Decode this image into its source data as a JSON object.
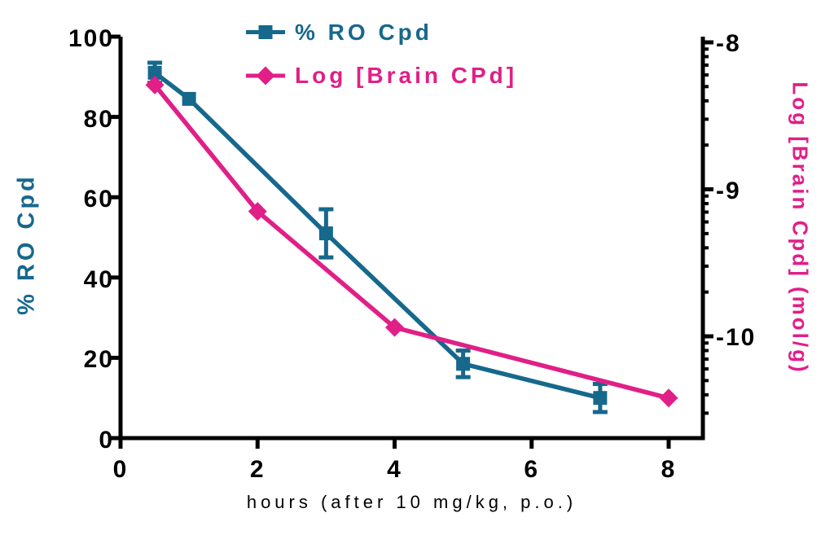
{
  "chart_data": {
    "type": "line",
    "title": "",
    "x_axis": {
      "label": "hours (after 10 mg/kg, p.o.)",
      "ticks": [
        0,
        2,
        4,
        6,
        8
      ],
      "min": 0,
      "max": 8.5
    },
    "y_left_axis": {
      "label": "% RO Cpd",
      "color": "#16688C",
      "ticks": [
        100,
        80,
        60,
        40,
        20,
        0
      ],
      "min": 0,
      "max": 100
    },
    "y_right_axis": {
      "label": "Log [Brain Cpd] (mol/g)",
      "color": "#E01F87",
      "major_ticks": [
        -8,
        -9,
        -10
      ],
      "scale": "log",
      "minor_tick_mantissas": [
        9,
        8,
        7,
        6,
        5,
        4,
        3,
        2
      ],
      "top": -7.96,
      "bottom": -10.69
    },
    "legend": [
      {
        "label": "% RO Cpd",
        "marker": "square",
        "color": "#16688C"
      },
      {
        "label": "Log [Brain CPd]",
        "marker": "diamond",
        "color": "#E01F87"
      }
    ],
    "series": [
      {
        "name": "% RO Cpd",
        "axis": "left",
        "marker": "square",
        "color": "#16688C",
        "points": [
          {
            "x": 0.5,
            "y": 91,
            "err": 2.5
          },
          {
            "x": 1,
            "y": 84.5,
            "err": 0
          },
          {
            "x": 3,
            "y": 51,
            "err": 6
          },
          {
            "x": 5,
            "y": 18.5,
            "err": 3.3
          },
          {
            "x": 7,
            "y": 10,
            "err": 3.5
          }
        ]
      },
      {
        "name": "Log [Brain CPd]",
        "axis": "right",
        "marker": "diamond",
        "color": "#E01F87",
        "points": [
          {
            "x": 0.5,
            "y": -8.29
          },
          {
            "x": 2,
            "y": -9.15
          },
          {
            "x": 4,
            "y": -9.94
          },
          {
            "x": 8,
            "y": -10.42
          }
        ]
      }
    ]
  }
}
